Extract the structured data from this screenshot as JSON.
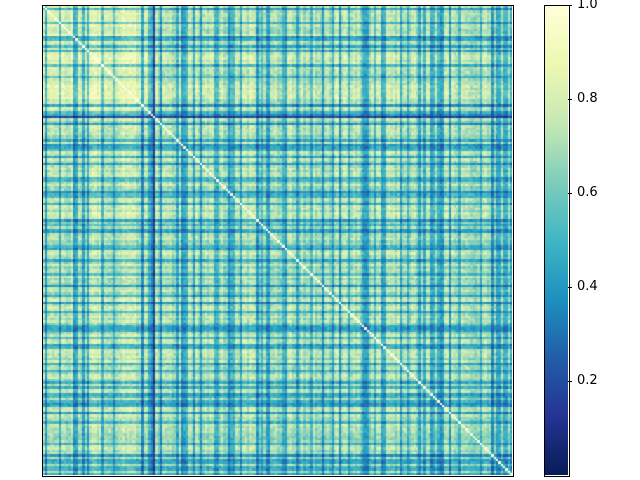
{
  "chart_data": {
    "type": "heatmap",
    "title": "",
    "xlabel": "",
    "ylabel": "",
    "matrix_size": 200,
    "diagonal_value": 1.0,
    "value_range": [
      0.0,
      1.0
    ],
    "colormap": "YlGnBu",
    "colormap_stops": [
      [
        0.0,
        "#081d58"
      ],
      [
        0.125,
        "#253494"
      ],
      [
        0.25,
        "#225ea8"
      ],
      [
        0.375,
        "#1d91c0"
      ],
      [
        0.5,
        "#41b6c4"
      ],
      [
        0.625,
        "#7fcdbb"
      ],
      [
        0.75,
        "#c7e9b4"
      ],
      [
        0.875,
        "#edf8b1"
      ],
      [
        1.0,
        "#ffffd9"
      ]
    ],
    "structure": {
      "description": "symmetric similarity matrix; first ~47 items form a higher-similarity block; many items with uniformly low similarity form dark bands",
      "high_block": [
        0,
        47
      ],
      "low_item_fraction": 0.3
    },
    "x_ticks_visible": false,
    "y_ticks_visible": false,
    "grid": false,
    "colorbar": {
      "ticks": [
        {
          "value": 0.2,
          "label": "0.2"
        },
        {
          "value": 0.4,
          "label": "0.4"
        },
        {
          "value": 0.6,
          "label": "0.6"
        },
        {
          "value": 0.8,
          "label": "0.8"
        },
        {
          "value": 1.0,
          "label": "1.0"
        }
      ],
      "range": [
        0.0,
        1.0
      ],
      "placement": "right"
    }
  }
}
